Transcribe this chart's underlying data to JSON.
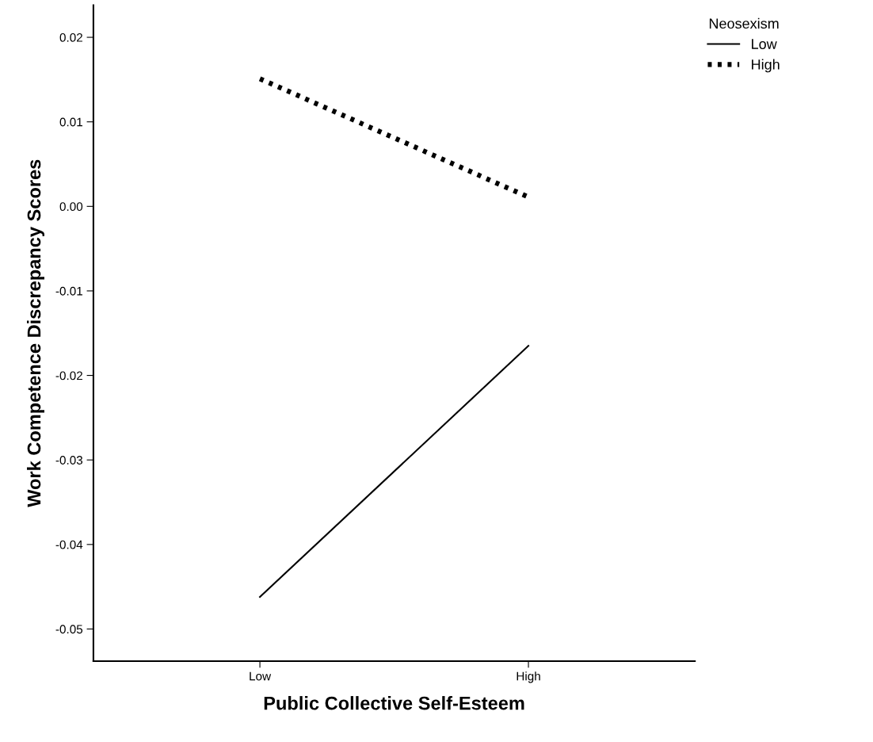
{
  "chart_data": {
    "type": "line",
    "xlabel": "Public Collective Self-Esteem",
    "ylabel": "Work Competence Discrepancy Scores",
    "legend_title": "Neosexism",
    "categories": [
      "Low",
      "High"
    ],
    "series": [
      {
        "name": "Low",
        "color": "#000000",
        "values": [
          -0.0462,
          -0.0165
        ],
        "line_style": "solid"
      },
      {
        "name": "High",
        "color": "#000000",
        "values": [
          0.0151,
          0.0011
        ],
        "line_style": "dotted"
      }
    ],
    "ylim": [
      -0.0538,
      0.0238
    ],
    "yticks": [
      {
        "value": 0.02,
        "label": "0.02"
      },
      {
        "value": 0.01,
        "label": "0.01"
      },
      {
        "value": 0.0,
        "label": "0.00"
      },
      {
        "value": -0.01,
        "label": "-0.01"
      },
      {
        "value": -0.02,
        "label": "-0.02"
      },
      {
        "value": -0.03,
        "label": "-0.03"
      },
      {
        "value": -0.04,
        "label": "-0.04"
      },
      {
        "value": -0.05,
        "label": "-0.05"
      }
    ],
    "grid": false,
    "legend": "top right"
  }
}
